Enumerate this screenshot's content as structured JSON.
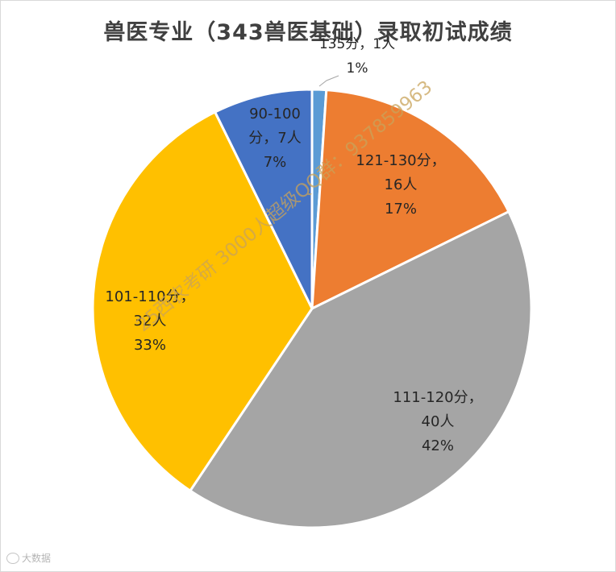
{
  "chart_data": {
    "type": "pie",
    "title": "兽医专业（343兽医基础）录取初试成绩",
    "slices": [
      {
        "label": "135分，1人",
        "count": 1,
        "percent": 1,
        "value": 1,
        "color": "#5b9bd5",
        "pct_label": "1%"
      },
      {
        "label": "121-130分，16人",
        "count": 16,
        "percent": 17,
        "value": 16,
        "color": "#ed7d31",
        "pct_label": "17%"
      },
      {
        "label": "111-120分，40人",
        "count": 40,
        "percent": 42,
        "value": 40,
        "color": "#a5a5a5",
        "pct_label": "42%"
      },
      {
        "label": "101-110分，32人",
        "count": 32,
        "percent": 33,
        "value": 32,
        "color": "#ffc000",
        "pct_label": "33%"
      },
      {
        "label": "90-100分，7人",
        "count": 7,
        "percent": 7,
        "value": 7,
        "color": "#4472c4",
        "pct_label": "7%"
      }
    ],
    "labels": [
      {
        "lines": [
          "135分，1人"
        ],
        "pct": "1%"
      },
      {
        "lines": [
          "121-130分，",
          "16人"
        ],
        "pct": "17%"
      },
      {
        "lines": [
          "111-120分，",
          "40人"
        ],
        "pct": "42%"
      },
      {
        "lines": [
          "101-110分，",
          "32人"
        ],
        "pct": "33%"
      },
      {
        "lines": [
          "90-100",
          "分，7人"
        ],
        "pct": "7%"
      }
    ]
  },
  "watermark": "25西农考研 3000人超级QQ群：937859963",
  "footer_mark": "大数据"
}
